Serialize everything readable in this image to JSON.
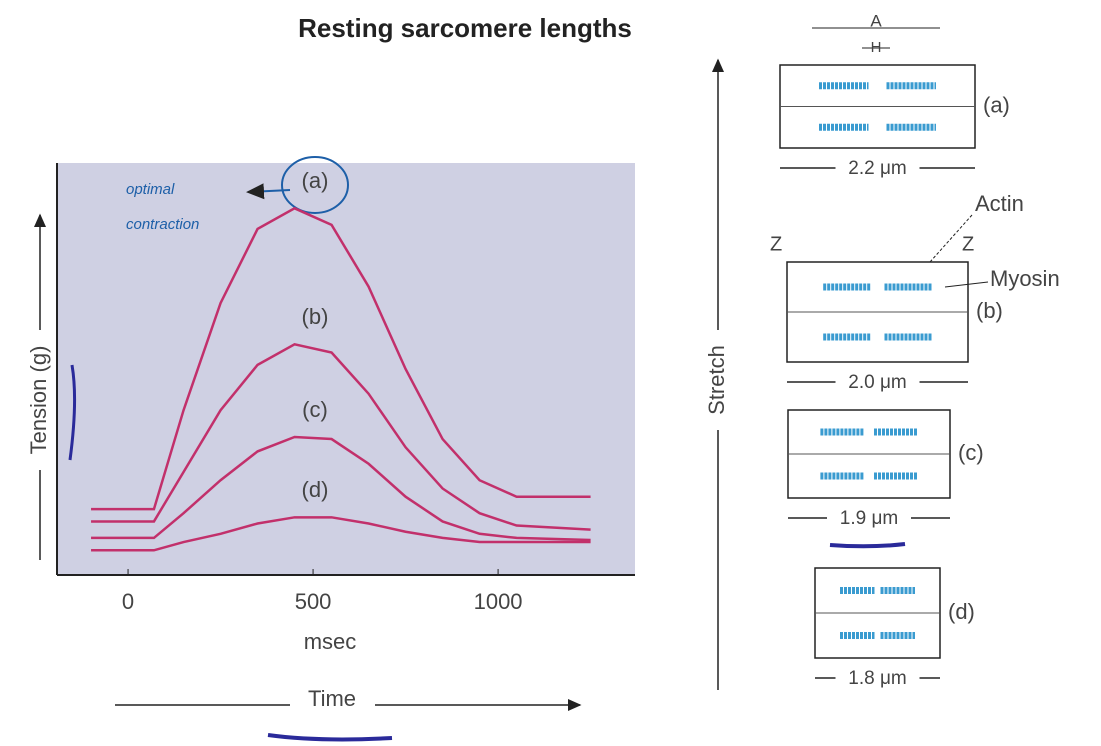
{
  "chart_data": {
    "type": "line",
    "title": "Resting sarcomere lengths",
    "x_label": "msec",
    "x_axis_title": "Time",
    "y_axis_title": "Tension (g)",
    "x": [
      -100,
      70,
      150,
      250,
      350,
      450,
      550,
      650,
      750,
      850,
      950,
      1050,
      1250
    ],
    "xlim": [
      -192,
      1370
    ],
    "xticks": [
      0,
      500,
      1000
    ],
    "ylim": [
      0,
      100
    ],
    "annotations": [
      "optimal",
      "contraction"
    ],
    "series": [
      {
        "name": "(a)",
        "color": "#c2306b",
        "values": [
          16,
          16,
          40,
          66,
          84,
          89,
          85,
          70,
          50,
          33,
          23,
          19,
          19
        ]
      },
      {
        "name": "(b)",
        "color": "#c2306b",
        "values": [
          13,
          13,
          25,
          40,
          51,
          56,
          54,
          44,
          31,
          21,
          15,
          12,
          11
        ]
      },
      {
        "name": "(c)",
        "color": "#c2306b",
        "values": [
          9,
          9,
          15,
          23,
          30,
          33.5,
          33,
          27,
          19,
          13,
          10,
          9,
          8.5
        ]
      },
      {
        "name": "(d)",
        "color": "#c2306b",
        "values": [
          6,
          6,
          8,
          10,
          12.5,
          14,
          14,
          12.5,
          10.5,
          9,
          8,
          8,
          8
        ]
      }
    ]
  },
  "diagram": {
    "stretch": "Stretch",
    "a_band": "A",
    "h_zone": "H",
    "actin": "Actin",
    "myosin": "Myosin",
    "z_left": "Z",
    "z_right": "Z",
    "panels": [
      {
        "label": "(a)",
        "length": "2.2 μm"
      },
      {
        "label": "(b)",
        "length": "2.0 μm"
      },
      {
        "label": "(c)",
        "length": "1.9 μm"
      },
      {
        "label": "(d)",
        "length": "1.8 μm"
      }
    ]
  }
}
